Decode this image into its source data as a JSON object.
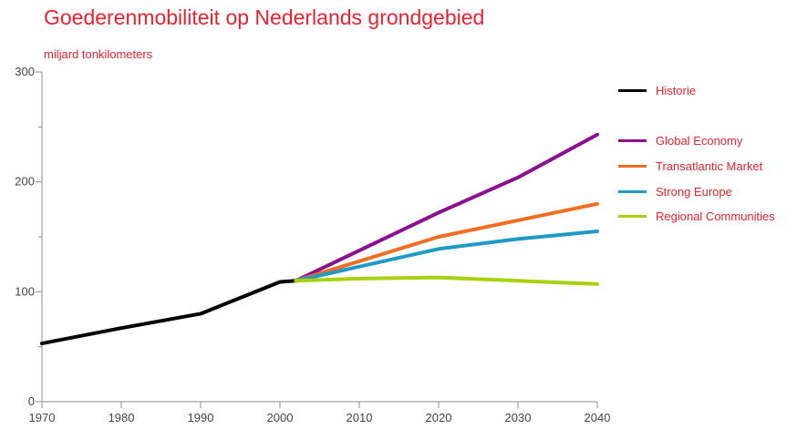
{
  "chart_data": {
    "type": "line",
    "title": "Goederenmobiliteit op Nederlands grondgebied",
    "ylabel": "miljard tonkilometers",
    "xlim": [
      1970,
      2040
    ],
    "ylim": [
      0,
      300
    ],
    "x_ticks": [
      1970,
      1980,
      1990,
      2000,
      2010,
      2020,
      2030,
      2040
    ],
    "y_ticks": [
      0,
      100,
      200,
      300
    ],
    "y_tick_labels": [
      "0",
      "100",
      "200",
      "300"
    ],
    "grid": false,
    "legend_position": "right",
    "series": [
      {
        "name": "Historie",
        "color": "#000000",
        "x": [
          1970,
          1980,
          1990,
          2000,
          2002
        ],
        "y": [
          53,
          67,
          80,
          109,
          110
        ]
      },
      {
        "name": "Global Economy",
        "color": "#8b0f8f",
        "x": [
          2002,
          2020,
          2030,
          2040
        ],
        "y": [
          110,
          172,
          204,
          243
        ]
      },
      {
        "name": "Transatlantic Market",
        "color": "#f26d21",
        "x": [
          2002,
          2020,
          2030,
          2040
        ],
        "y": [
          110,
          150,
          165,
          180
        ]
      },
      {
        "name": "Strong Europe",
        "color": "#1e9ac4",
        "x": [
          2002,
          2020,
          2030,
          2040
        ],
        "y": [
          110,
          139,
          148,
          155
        ]
      },
      {
        "name": "Regional Communities",
        "color": "#a8d10d",
        "x": [
          2002,
          2010,
          2020,
          2030,
          2040
        ],
        "y": [
          110,
          112,
          113,
          110,
          107
        ]
      }
    ]
  }
}
